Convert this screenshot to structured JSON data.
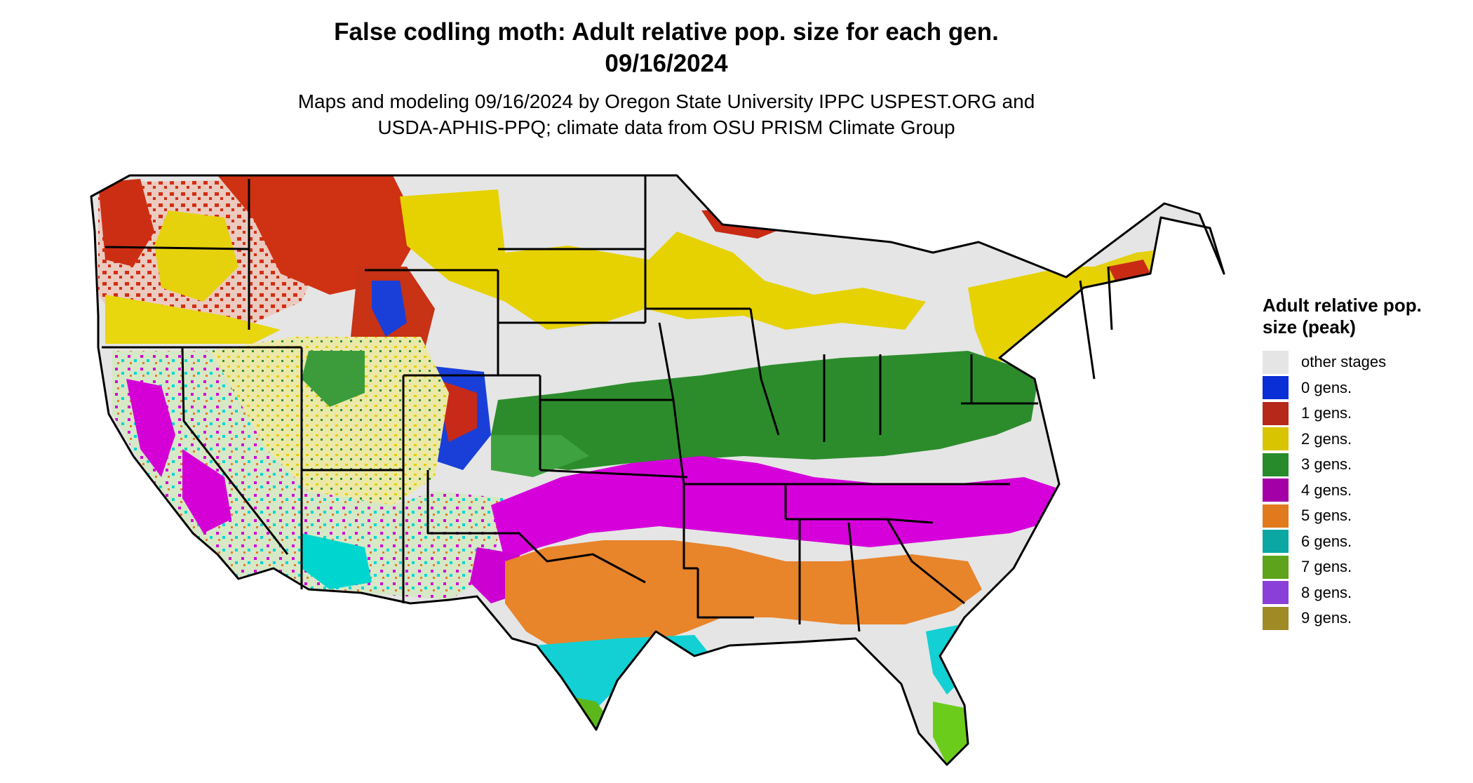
{
  "title_line1": "False codling moth: Adult relative pop. size for each gen.",
  "title_line2": "09/16/2024",
  "subtitle_line1": "Maps and modeling 09/16/2024 by Oregon State University IPPC USPEST.ORG and",
  "subtitle_line2": "USDA-APHIS-PPQ; climate data from OSU PRISM Climate Group",
  "legend": {
    "title": "Adult relative pop. size (peak)",
    "items": [
      {
        "label": "other stages",
        "color": "#e5e5e5"
      },
      {
        "label": "0 gens.",
        "color": "#0a2fd6"
      },
      {
        "label": "1 gens.",
        "color": "#b5281a"
      },
      {
        "label": "2 gens.",
        "color": "#d8c400"
      },
      {
        "label": "3 gens.",
        "color": "#278a2b"
      },
      {
        "label": "4 gens.",
        "color": "#a400a8"
      },
      {
        "label": "5 gens.",
        "color": "#e07a1c"
      },
      {
        "label": "6 gens.",
        "color": "#0aa7a3"
      },
      {
        "label": "7 gens.",
        "color": "#5ea31c"
      },
      {
        "label": "8 gens.",
        "color": "#8a3fd8"
      },
      {
        "label": "9 gens.",
        "color": "#9f8a26"
      }
    ]
  }
}
